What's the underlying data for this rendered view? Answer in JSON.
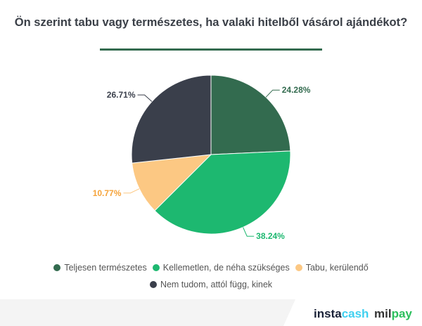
{
  "chart_data": {
    "type": "pie",
    "title": "Ön szerint tabu vagy természetes, ha valaki hitelből vásárol ajándékot?",
    "series": [
      {
        "name": "Teljesen természetes",
        "value": 24.28,
        "label": "24.28%",
        "color": "#336b4f"
      },
      {
        "name": "Kellemetlen, de néha szükséges",
        "value": 38.24,
        "label": "38.24%",
        "color": "#1db870"
      },
      {
        "name": "Tabu, kerülendő",
        "value": 10.77,
        "label": "10.77%",
        "color": "#fcc883"
      },
      {
        "name": "Nem tudom, attól függ, kinek",
        "value": 26.71,
        "label": "26.71%",
        "color": "#3a3f4b"
      }
    ],
    "legend": "bottom"
  },
  "brand": {
    "logo1a": "insta",
    "logo1b": "cash",
    "logo2a": "mil",
    "logo2b": "pay"
  }
}
